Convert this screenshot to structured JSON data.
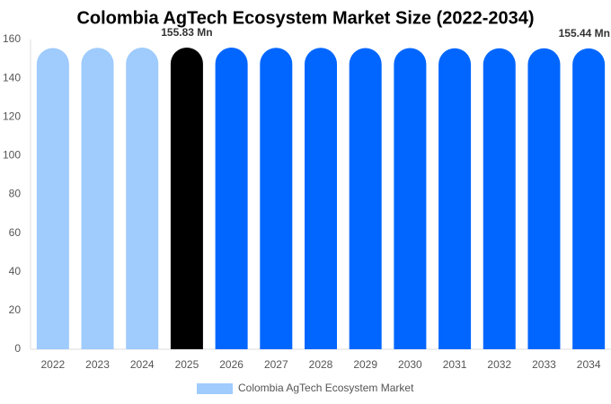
{
  "chart_data": {
    "type": "bar",
    "title": "Colombia AgTech Ecosystem Market Size (2022-2034)",
    "categories": [
      "2022",
      "2023",
      "2024",
      "2025",
      "2026",
      "2027",
      "2028",
      "2029",
      "2030",
      "2031",
      "2032",
      "2033",
      "2034"
    ],
    "series": [
      {
        "name": "Colombia AgTech Ecosystem Market",
        "color": "#9fcbfd",
        "colors": [
          "#9fcbfd",
          "#9fcbfd",
          "#9fcbfd",
          "#000000",
          "#0066ff",
          "#0066ff",
          "#0066ff",
          "#0066ff",
          "#0066ff",
          "#0066ff",
          "#0066ff",
          "#0066ff",
          "#0066ff"
        ],
        "values": [
          155.6,
          155.7,
          155.8,
          155.83,
          155.8,
          155.7,
          155.7,
          155.6,
          155.6,
          155.5,
          155.5,
          155.5,
          155.44
        ],
        "value_labels": [
          null,
          null,
          null,
          "155.83 Mn",
          null,
          null,
          null,
          null,
          null,
          null,
          null,
          null,
          "155.44 Mn"
        ]
      }
    ],
    "ylim": [
      0,
      160
    ],
    "yticks": [
      0,
      20,
      40,
      60,
      80,
      100,
      120,
      140,
      160
    ],
    "grid": false,
    "legend": "bottom"
  }
}
